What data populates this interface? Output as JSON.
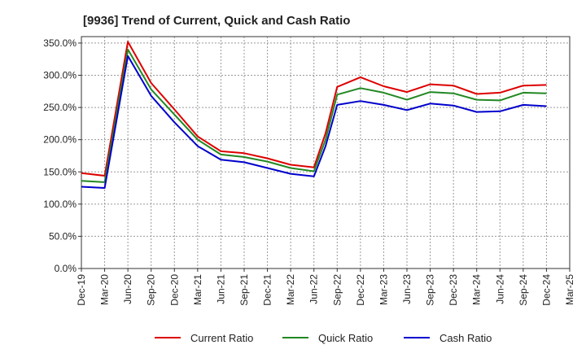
{
  "chart_data": {
    "type": "line",
    "title": "[9936]  Trend of Current, Quick and Cash Ratio",
    "xlabel": "",
    "ylabel": "",
    "ylim": [
      0,
      360
    ],
    "y_ticks": [
      0,
      50,
      100,
      150,
      200,
      250,
      300,
      350
    ],
    "y_tick_labels": [
      "0.0%",
      "50.0%",
      "100.0%",
      "150.0%",
      "200.0%",
      "250.0%",
      "300.0%",
      "350.0%"
    ],
    "x_tick_labels": [
      "Dec-19",
      "Mar-20",
      "Jun-20",
      "Sep-20",
      "Dec-20",
      "Mar-21",
      "Jun-21",
      "Sep-21",
      "Dec-21",
      "Mar-22",
      "Jun-22",
      "Sep-22",
      "Dec-22",
      "Mar-23",
      "Jun-23",
      "Sep-23",
      "Dec-23",
      "Mar-24",
      "Jun-24",
      "Sep-24",
      "Dec-24",
      "Mar-25"
    ],
    "x_tick_count": 22,
    "grid": true,
    "legend_position": "bottom",
    "series": [
      {
        "name": "Current Ratio",
        "color": "#dd0000",
        "x": [
          0,
          1,
          2,
          3,
          4,
          5,
          6,
          7,
          8,
          9,
          10,
          10.5,
          11,
          12,
          13,
          14,
          15,
          16,
          17,
          18,
          19,
          20
        ],
        "values": [
          148,
          144,
          352,
          288,
          247,
          205,
          182,
          179,
          171,
          161,
          157,
          210,
          282,
          297,
          283,
          274,
          286,
          284,
          271,
          273,
          284,
          285
        ]
      },
      {
        "name": "Quick Ratio",
        "color": "#228822",
        "x": [
          0,
          1,
          2,
          3,
          4,
          5,
          6,
          7,
          8,
          9,
          10,
          10.5,
          11,
          12,
          13,
          14,
          15,
          16,
          17,
          18,
          19,
          20
        ],
        "values": [
          136,
          134,
          340,
          278,
          239,
          200,
          177,
          173,
          166,
          156,
          151,
          200,
          270,
          280,
          273,
          262,
          274,
          272,
          262,
          261,
          273,
          272
        ]
      },
      {
        "name": "Cash Ratio",
        "color": "#0000cc",
        "x": [
          0,
          1,
          2,
          3,
          4,
          5,
          6,
          7,
          8,
          9,
          10,
          10.5,
          11,
          12,
          13,
          14,
          15,
          16,
          17,
          18,
          19,
          20
        ],
        "values": [
          127,
          125,
          330,
          268,
          227,
          190,
          169,
          165,
          156,
          147,
          143,
          190,
          254,
          260,
          254,
          246,
          256,
          253,
          243,
          244,
          254,
          252
        ]
      }
    ]
  }
}
